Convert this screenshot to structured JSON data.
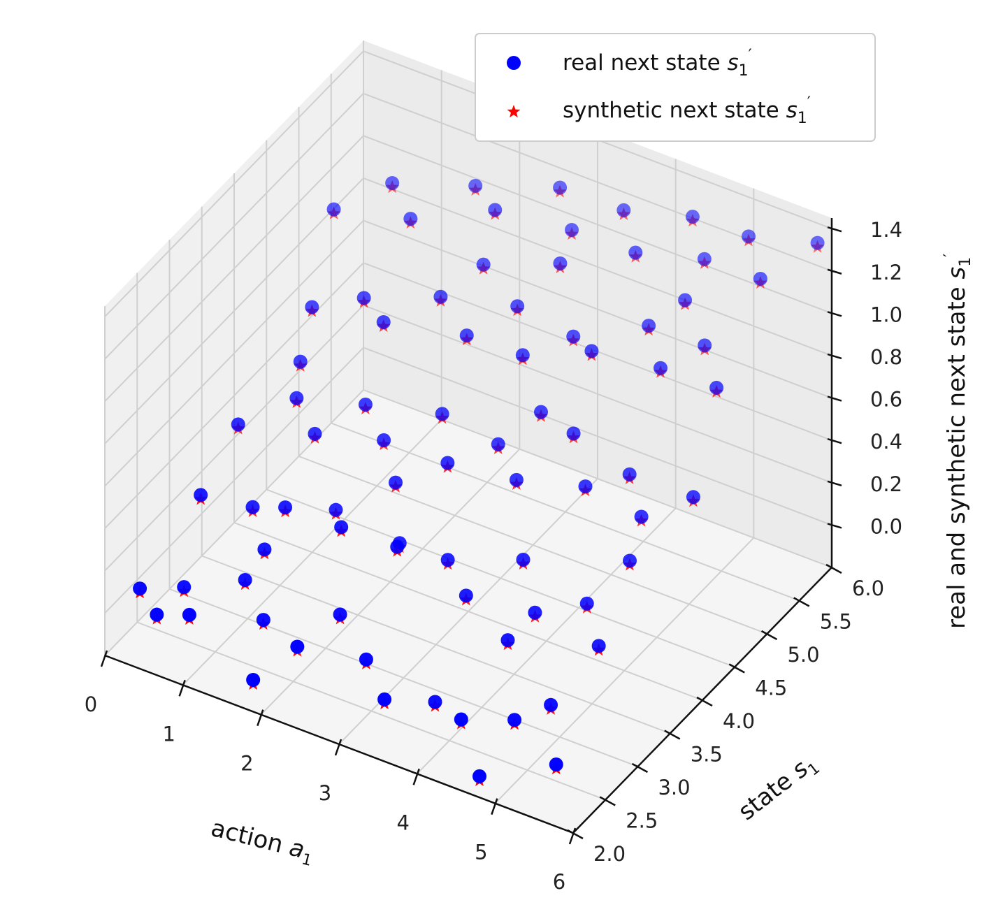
{
  "chart_data": {
    "type": "scatter",
    "projection": "3d",
    "xlabel": "action a1",
    "ylabel": "state s1",
    "zlabel": "real and synthetic next state s1'",
    "xlim": [
      0,
      6
    ],
    "ylim": [
      2,
      6
    ],
    "zlim": [
      -0.2,
      1.45
    ],
    "x_ticks": [
      "0",
      "1",
      "2",
      "3",
      "4",
      "5",
      "6"
    ],
    "y_ticks": [
      "2.0",
      "2.5",
      "3.0",
      "3.5",
      "4.0",
      "4.5",
      "5.0",
      "5.5",
      "6.0"
    ],
    "z_ticks": [
      "0.0",
      "0.2",
      "0.4",
      "0.6",
      "0.8",
      "1.0",
      "1.2",
      "1.4"
    ],
    "grid": true,
    "legend_position": "top-right",
    "series": [
      {
        "name": "real next state s1'",
        "marker": "circle",
        "color": "#0000ff"
      },
      {
        "name": "synthetic next state s1'",
        "marker": "star",
        "color": "#ff0000"
      }
    ],
    "points": [
      [
        0.2,
        2.3,
        0.05
      ],
      [
        0.5,
        2.2,
        0.0
      ],
      [
        0.6,
        2.5,
        0.05
      ],
      [
        1.0,
        2.1,
        0.1
      ],
      [
        1.3,
        2.6,
        0.15
      ],
      [
        1.7,
        2.4,
        0.08
      ],
      [
        1.9,
        2.0,
        -0.05
      ],
      [
        2.3,
        2.2,
        0.1
      ],
      [
        2.6,
        2.5,
        0.2
      ],
      [
        3.1,
        2.3,
        0.12
      ],
      [
        3.5,
        2.1,
        0.05
      ],
      [
        3.9,
        2.4,
        0.0
      ],
      [
        4.4,
        2.2,
        0.05
      ],
      [
        4.8,
        2.0,
        -0.1
      ],
      [
        5.0,
        2.3,
        0.1
      ],
      [
        5.3,
        2.5,
        0.15
      ],
      [
        5.7,
        2.1,
        0.05
      ],
      [
        0.4,
        3.0,
        0.3
      ],
      [
        0.9,
        3.2,
        0.25
      ],
      [
        1.4,
        3.1,
        0.35
      ],
      [
        1.8,
        3.4,
        0.3
      ],
      [
        2.2,
        3.0,
        0.4
      ],
      [
        2.7,
        3.3,
        0.3
      ],
      [
        3.0,
        2.9,
        0.45
      ],
      [
        3.4,
        3.2,
        0.35
      ],
      [
        3.8,
        3.0,
        0.3
      ],
      [
        4.2,
        3.4,
        0.4
      ],
      [
        4.6,
        3.1,
        0.3
      ],
      [
        5.1,
        3.3,
        0.35
      ],
      [
        5.5,
        3.0,
        0.3
      ],
      [
        0.3,
        3.7,
        0.4
      ],
      [
        0.8,
        4.0,
        0.5
      ],
      [
        1.2,
        3.8,
        0.45
      ],
      [
        1.6,
        4.1,
        0.55
      ],
      [
        2.0,
        3.9,
        0.5
      ],
      [
        2.5,
        4.2,
        0.6
      ],
      [
        2.9,
        3.8,
        0.55
      ],
      [
        3.3,
        4.1,
        0.6
      ],
      [
        3.7,
        3.9,
        0.55
      ],
      [
        4.1,
        4.3,
        0.7
      ],
      [
        4.5,
        4.0,
        0.6
      ],
      [
        4.9,
        4.2,
        0.65
      ],
      [
        5.3,
        3.9,
        0.6
      ],
      [
        5.8,
        4.1,
        0.7
      ],
      [
        0.5,
        4.6,
        0.7
      ],
      [
        1.0,
        4.8,
        0.75
      ],
      [
        1.5,
        4.5,
        0.8
      ],
      [
        1.9,
        4.9,
        0.85
      ],
      [
        2.4,
        4.7,
        0.8
      ],
      [
        2.8,
        5.0,
        0.9
      ],
      [
        3.2,
        4.6,
        0.85
      ],
      [
        3.6,
        4.9,
        0.9
      ],
      [
        4.0,
        4.7,
        0.95
      ],
      [
        4.4,
        5.1,
        1.0
      ],
      [
        4.8,
        4.8,
        0.95
      ],
      [
        5.2,
        5.0,
        1.05
      ],
      [
        5.6,
        4.7,
        1.0
      ],
      [
        0.2,
        5.3,
        0.9
      ],
      [
        0.7,
        5.6,
        1.0
      ],
      [
        1.1,
        5.4,
        0.95
      ],
      [
        1.6,
        5.8,
        1.05
      ],
      [
        2.1,
        5.5,
        1.1
      ],
      [
        2.6,
        5.9,
        1.15
      ],
      [
        3.0,
        5.6,
        1.1
      ],
      [
        3.5,
        5.8,
        1.2
      ],
      [
        3.9,
        5.5,
        1.15
      ],
      [
        4.3,
        5.9,
        1.25
      ],
      [
        4.7,
        5.6,
        1.2
      ],
      [
        5.1,
        5.8,
        1.3
      ],
      [
        5.5,
        5.5,
        1.25
      ],
      [
        5.9,
        5.9,
        1.35
      ],
      [
        1.3,
        2.9,
        0.2
      ],
      [
        2.4,
        3.6,
        0.45
      ],
      [
        3.6,
        4.4,
        0.7
      ],
      [
        4.7,
        5.3,
        1.1
      ],
      [
        0.6,
        4.3,
        0.55
      ],
      [
        2.2,
        5.2,
        0.95
      ],
      [
        4.5,
        2.8,
        0.25
      ],
      [
        5.4,
        3.6,
        0.5
      ],
      [
        3.1,
        5.3,
        1.05
      ]
    ]
  }
}
